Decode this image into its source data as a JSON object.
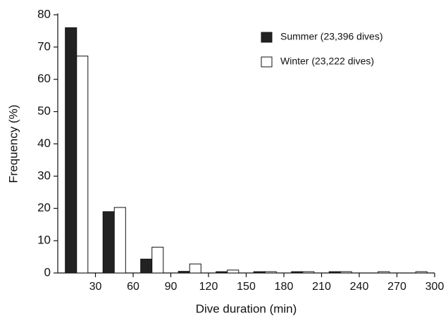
{
  "chart_data": {
    "type": "histogram",
    "x_label": "Dive duration (min)",
    "y_label": "Frequency (%)",
    "bins": [
      0,
      30,
      60,
      90,
      120,
      150,
      180,
      210,
      240,
      270,
      300
    ],
    "series": [
      {
        "name": "Summer (23,396 dives)",
        "color": "#222222",
        "values": [
          76,
          19,
          4.3,
          0.5,
          0.4,
          0.4,
          0.4,
          0.4,
          0,
          0
        ]
      },
      {
        "name": "Winter (23,222 dives)",
        "color": "#ffffff",
        "values": [
          67.2,
          20.3,
          8,
          2.8,
          0.9,
          0.4,
          0.4,
          0.4,
          0.4,
          0.4
        ]
      }
    ],
    "xlim": [
      0,
      300
    ],
    "xticks": [
      30,
      60,
      90,
      120,
      150,
      180,
      210,
      240,
      270,
      300
    ],
    "ylim": [
      0,
      80
    ],
    "yticks": [
      0,
      10,
      20,
      30,
      40,
      50,
      60,
      70,
      80
    ],
    "legend": "top-right"
  }
}
